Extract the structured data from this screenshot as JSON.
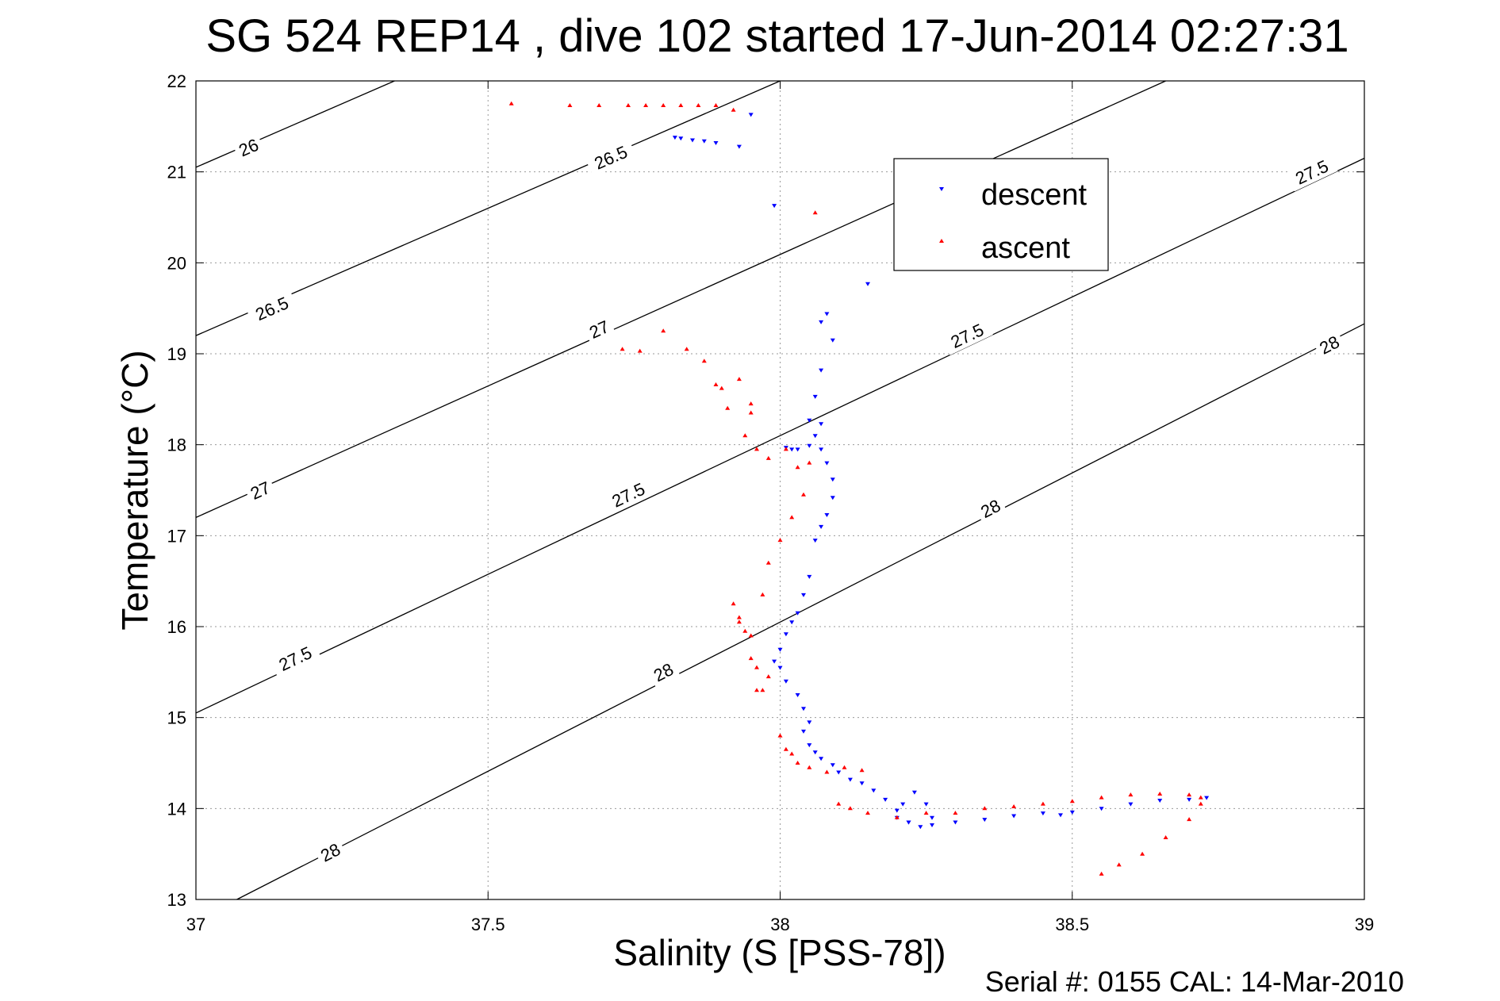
{
  "chart_data": {
    "type": "scatter",
    "title": "SG 524   REP14  , dive 102 started 17-Jun-2014 02:27:31",
    "xlabel": "Salinity (S [PSS-78])",
    "ylabel": "Temperature (°C)",
    "footer": "Serial #: 0155  CAL: 14-Mar-2010",
    "xlim": [
      37,
      39
    ],
    "ylim": [
      13,
      22
    ],
    "xticks": [
      37,
      37.5,
      38,
      38.5,
      39
    ],
    "xtick_labels": [
      "37",
      "37.5",
      "38",
      "38.5",
      "39"
    ],
    "yticks": [
      13,
      14,
      15,
      16,
      17,
      18,
      19,
      20,
      21,
      22
    ],
    "ytick_labels": [
      "13",
      "14",
      "15",
      "16",
      "17",
      "18",
      "19",
      "20",
      "21",
      "22"
    ],
    "grid": true,
    "legend": {
      "position": "top-right",
      "entries": [
        "descent",
        "ascent"
      ]
    },
    "contours": [
      {
        "level": "26",
        "points": [
          [
            37,
            21.05
          ],
          [
            37.34,
            22.0
          ]
        ],
        "labels": [
          {
            "text": "26",
            "at": [
              37.09,
              21.27
            ]
          }
        ]
      },
      {
        "level": "26.5",
        "points": [
          [
            37,
            19.2
          ],
          [
            38.0,
            22.0
          ]
        ],
        "labels": [
          {
            "text": "26.5",
            "at": [
              37.13,
              19.5
            ]
          },
          {
            "text": "26.5",
            "at": [
              37.71,
              21.16
            ]
          }
        ]
      },
      {
        "level": "27",
        "points": [
          [
            37,
            17.2
          ],
          [
            38.66,
            22.0
          ]
        ],
        "labels": [
          {
            "text": "27",
            "at": [
              37.11,
              17.5
            ]
          },
          {
            "text": "27",
            "at": [
              37.69,
              19.27
            ]
          }
        ]
      },
      {
        "level": "27.5",
        "points": [
          [
            37,
            15.05
          ],
          [
            39,
            21.15
          ]
        ],
        "labels": [
          {
            "text": "27.5",
            "at": [
              37.17,
              15.65
            ]
          },
          {
            "text": "27.5",
            "at": [
              37.74,
              17.45
            ]
          },
          {
            "text": "27.5",
            "at": [
              38.32,
              19.2
            ]
          },
          {
            "text": "27.5",
            "at": [
              38.91,
              21.0
            ]
          }
        ]
      },
      {
        "level": "28",
        "points": [
          [
            37.07,
            13.0
          ],
          [
            39,
            19.33
          ]
        ],
        "labels": [
          {
            "text": "28",
            "at": [
              37.23,
              13.52
            ]
          },
          {
            "text": "28",
            "at": [
              37.8,
              15.5
            ]
          },
          {
            "text": "28",
            "at": [
              38.36,
              17.3
            ]
          },
          {
            "text": "28",
            "at": [
              38.94,
              19.1
            ]
          }
        ]
      }
    ],
    "series": [
      {
        "name": "descent",
        "color": "#0000ff",
        "marker": "down-triangle",
        "x": [
          37.82,
          37.83,
          37.85,
          37.87,
          37.89,
          37.93,
          37.95,
          37.99,
          38.15,
          38.08,
          38.07,
          38.09,
          38.07,
          38.06,
          38.05,
          38.07,
          38.06,
          38.05,
          38.03,
          38.01,
          38.02,
          38.07,
          38.08,
          38.09,
          38.09,
          38.08,
          38.07,
          38.06,
          38.05,
          38.04,
          38.03,
          38.02,
          38.01,
          38.0,
          37.99,
          38.0,
          38.01,
          38.03,
          38.04,
          38.05,
          38.04,
          38.05,
          38.06,
          38.07,
          38.09,
          38.1,
          38.12,
          38.14,
          38.16,
          38.18,
          38.2,
          38.22,
          38.24,
          38.26,
          38.25,
          38.23,
          38.21,
          38.2,
          38.22,
          38.26,
          38.3,
          38.35,
          38.4,
          38.45,
          38.48,
          38.5,
          38.55,
          38.6,
          38.65,
          38.7,
          38.73
        ],
        "y": [
          21.38,
          21.37,
          21.35,
          21.34,
          21.32,
          21.28,
          21.63,
          20.63,
          19.77,
          19.44,
          19.35,
          19.15,
          18.82,
          18.53,
          18.27,
          18.23,
          18.1,
          17.99,
          17.95,
          17.97,
          17.95,
          17.95,
          17.8,
          17.62,
          17.42,
          17.23,
          17.1,
          16.95,
          16.55,
          16.35,
          16.15,
          16.05,
          15.92,
          15.75,
          15.62,
          15.55,
          15.4,
          15.25,
          15.1,
          14.95,
          14.85,
          14.7,
          14.62,
          14.55,
          14.48,
          14.4,
          14.32,
          14.28,
          14.2,
          14.1,
          13.98,
          13.85,
          13.8,
          13.82,
          14.05,
          14.18,
          14.05,
          13.9,
          13.85,
          13.9,
          13.85,
          13.88,
          13.92,
          13.95,
          13.93,
          13.96,
          14.0,
          14.05,
          14.09,
          14.1,
          14.12
        ]
      },
      {
        "name": "ascent",
        "color": "#ff0000",
        "marker": "up-triangle",
        "x": [
          37.54,
          37.64,
          37.69,
          37.74,
          37.77,
          37.8,
          37.83,
          37.86,
          37.89,
          37.92,
          38.06,
          37.73,
          37.76,
          37.8,
          37.84,
          37.87,
          37.9,
          37.89,
          37.91,
          37.93,
          37.95,
          37.95,
          37.94,
          37.96,
          37.98,
          38.01,
          38.03,
          38.05,
          38.04,
          38.02,
          38.0,
          37.98,
          37.97,
          37.92,
          37.93,
          37.94,
          37.95,
          37.96,
          37.97,
          37.96,
          37.98,
          37.93,
          37.95,
          38.0,
          38.01,
          38.02,
          38.03,
          38.05,
          38.08,
          38.11,
          38.14,
          38.1,
          38.12,
          38.15,
          38.2,
          38.25,
          38.3,
          38.35,
          38.4,
          38.45,
          38.5,
          38.55,
          38.6,
          38.65,
          38.7,
          38.72,
          38.72,
          38.7,
          38.66,
          38.62,
          38.58,
          38.55
        ],
        "y": [
          21.75,
          21.73,
          21.73,
          21.73,
          21.73,
          21.73,
          21.73,
          21.73,
          21.73,
          21.68,
          20.55,
          19.05,
          19.03,
          19.25,
          19.05,
          18.92,
          18.62,
          18.66,
          18.4,
          18.72,
          18.45,
          18.35,
          18.1,
          17.95,
          17.85,
          17.95,
          17.75,
          17.8,
          17.45,
          17.2,
          16.95,
          16.7,
          16.35,
          16.25,
          16.05,
          15.95,
          15.65,
          15.55,
          15.3,
          15.3,
          15.45,
          16.1,
          15.9,
          14.8,
          14.65,
          14.6,
          14.5,
          14.45,
          14.4,
          14.45,
          14.42,
          14.05,
          14.0,
          13.95,
          13.9,
          13.95,
          13.95,
          14.0,
          14.02,
          14.05,
          14.08,
          14.12,
          14.15,
          14.16,
          14.15,
          14.12,
          14.05,
          13.88,
          13.68,
          13.5,
          13.38,
          13.28
        ]
      }
    ]
  }
}
